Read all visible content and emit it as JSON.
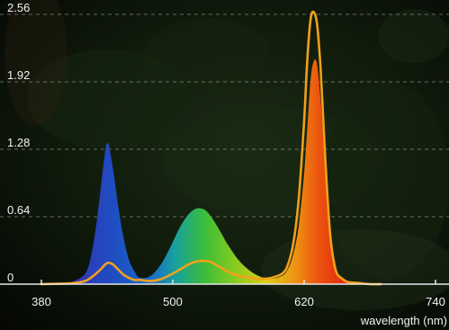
{
  "chart_data": {
    "type": "area",
    "title": "",
    "xlabel": "wavelength (nm)",
    "ylabel": "",
    "xlim": [
      380,
      740
    ],
    "ylim": [
      0,
      2.56
    ],
    "x_ticks": [
      "380",
      "500",
      "620",
      "740"
    ],
    "y_ticks": [
      "0",
      "0.64",
      "1.28",
      "1.92",
      "2.56"
    ],
    "grid": "horizontal dashed",
    "background": "dark aquarium plant photo",
    "series": [
      {
        "style": "filled spectral-gradient area",
        "x": [
          380,
          400,
          410,
          420,
          425,
          430,
          435,
          440,
          445,
          450,
          455,
          460,
          465,
          470,
          480,
          490,
          500,
          505,
          510,
          515,
          520,
          525,
          530,
          535,
          540,
          545,
          550,
          560,
          570,
          580,
          590,
          600,
          605,
          610,
          615,
          620,
          623,
          626,
          629,
          632,
          635,
          638,
          641,
          644,
          647,
          650,
          655,
          660,
          670,
          680,
          690
        ],
        "y": [
          0,
          0.01,
          0.03,
          0.1,
          0.25,
          0.55,
          0.98,
          1.34,
          1.12,
          0.75,
          0.44,
          0.23,
          0.12,
          0.06,
          0.08,
          0.2,
          0.4,
          0.51,
          0.6,
          0.67,
          0.71,
          0.72,
          0.7,
          0.64,
          0.56,
          0.47,
          0.38,
          0.23,
          0.13,
          0.07,
          0.05,
          0.08,
          0.14,
          0.28,
          0.55,
          1.05,
          1.5,
          1.95,
          2.12,
          2.08,
          1.75,
          1.25,
          0.78,
          0.42,
          0.2,
          0.09,
          0.04,
          0.02,
          0.01,
          0,
          0
        ]
      },
      {
        "style": "orange line",
        "color": "#f0a01c",
        "x": [
          380,
          400,
          410,
          420,
          425,
          430,
          435,
          440,
          445,
          450,
          455,
          460,
          465,
          470,
          480,
          490,
          500,
          505,
          510,
          515,
          520,
          525,
          530,
          535,
          540,
          545,
          550,
          560,
          570,
          580,
          590,
          600,
          605,
          610,
          615,
          620,
          623,
          626,
          629,
          632,
          635,
          638,
          641,
          644,
          647,
          650,
          655,
          660,
          670,
          680,
          690
        ],
        "y": [
          0,
          0.005,
          0.01,
          0.03,
          0.06,
          0.1,
          0.15,
          0.2,
          0.19,
          0.14,
          0.09,
          0.06,
          0.04,
          0.04,
          0.03,
          0.05,
          0.1,
          0.13,
          0.16,
          0.19,
          0.21,
          0.22,
          0.22,
          0.21,
          0.18,
          0.15,
          0.12,
          0.08,
          0.06,
          0.05,
          0.06,
          0.1,
          0.18,
          0.38,
          0.8,
          1.55,
          2.15,
          2.52,
          2.58,
          2.45,
          2.05,
          1.45,
          0.88,
          0.45,
          0.22,
          0.1,
          0.05,
          0.02,
          0.01,
          0,
          0
        ]
      }
    ]
  }
}
